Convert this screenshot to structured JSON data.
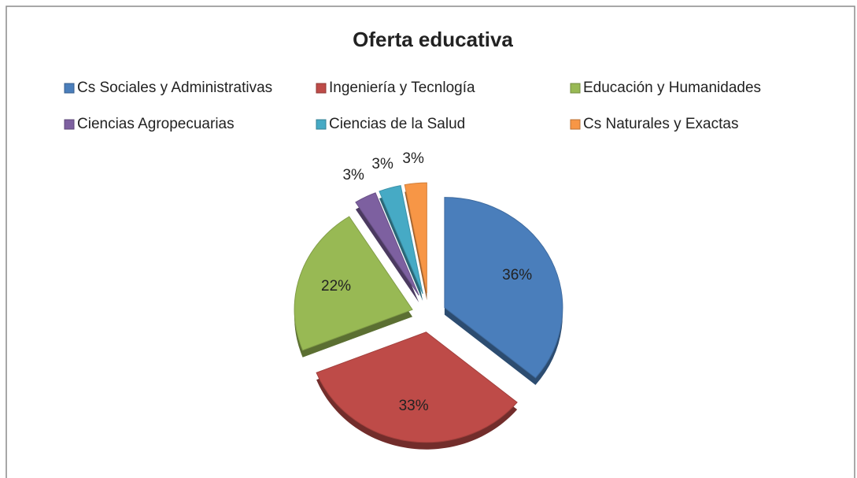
{
  "chart_data": {
    "type": "pie",
    "title": "Oferta educativa",
    "categories": [
      "Cs Sociales y Administrativas",
      "Ingeniería y Tecnlogía",
      "Educación y Humanidades",
      "Ciencias Agropecuarias",
      "Ciencias de la Salud",
      "Cs Naturales y Exactas"
    ],
    "values": [
      36,
      33,
      22,
      3,
      3,
      3
    ],
    "value_labels": [
      "36%",
      "33%",
      "22%",
      "3%",
      "3%",
      "3%"
    ],
    "colors": [
      "#4a7ebb",
      "#be4b48",
      "#98b954",
      "#7d60a0",
      "#46aac5",
      "#f79646"
    ],
    "legend": "top"
  }
}
